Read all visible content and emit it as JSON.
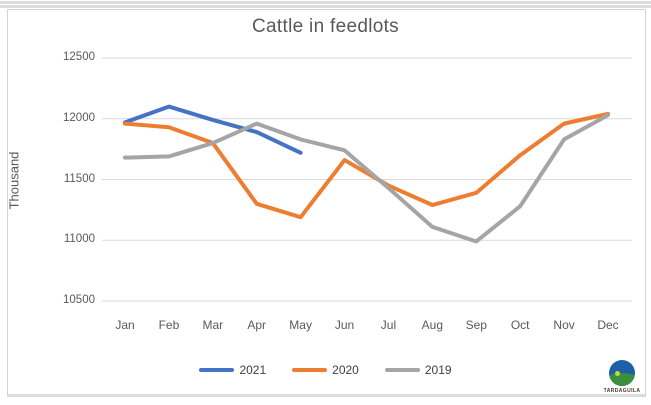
{
  "chart_data": {
    "type": "line",
    "title": "Cattle in feedlots",
    "xlabel": "",
    "ylabel": "Thousand",
    "categories": [
      "Jan",
      "Feb",
      "Mar",
      "Apr",
      "May",
      "Jun",
      "Jul",
      "Aug",
      "Sep",
      "Oct",
      "Nov",
      "Dec"
    ],
    "yticks": [
      10500,
      11000,
      11500,
      12000,
      12500
    ],
    "ylim": [
      10500,
      12500
    ],
    "grid": true,
    "gridline_color": "#d9d9d9",
    "legend_position": "bottom",
    "series": [
      {
        "name": "2021",
        "color": "#4472C4",
        "values": [
          11970,
          12100,
          11990,
          11890,
          11720
        ]
      },
      {
        "name": "2020",
        "color": "#ED7D31",
        "values": [
          11960,
          11930,
          11800,
          11300,
          11190,
          11660,
          11450,
          11290,
          11390,
          11700,
          11960,
          12040
        ]
      },
      {
        "name": "2019",
        "color": "#A5A5A5",
        "values": [
          11680,
          11690,
          11800,
          11960,
          11830,
          11740,
          11430,
          11110,
          10990,
          11280,
          11830,
          12030
        ]
      }
    ]
  },
  "text_colors": {
    "title": "#595959",
    "axis": "#595959",
    "legend": "#404040"
  },
  "logo": {
    "name": "TARDAGUILA"
  }
}
